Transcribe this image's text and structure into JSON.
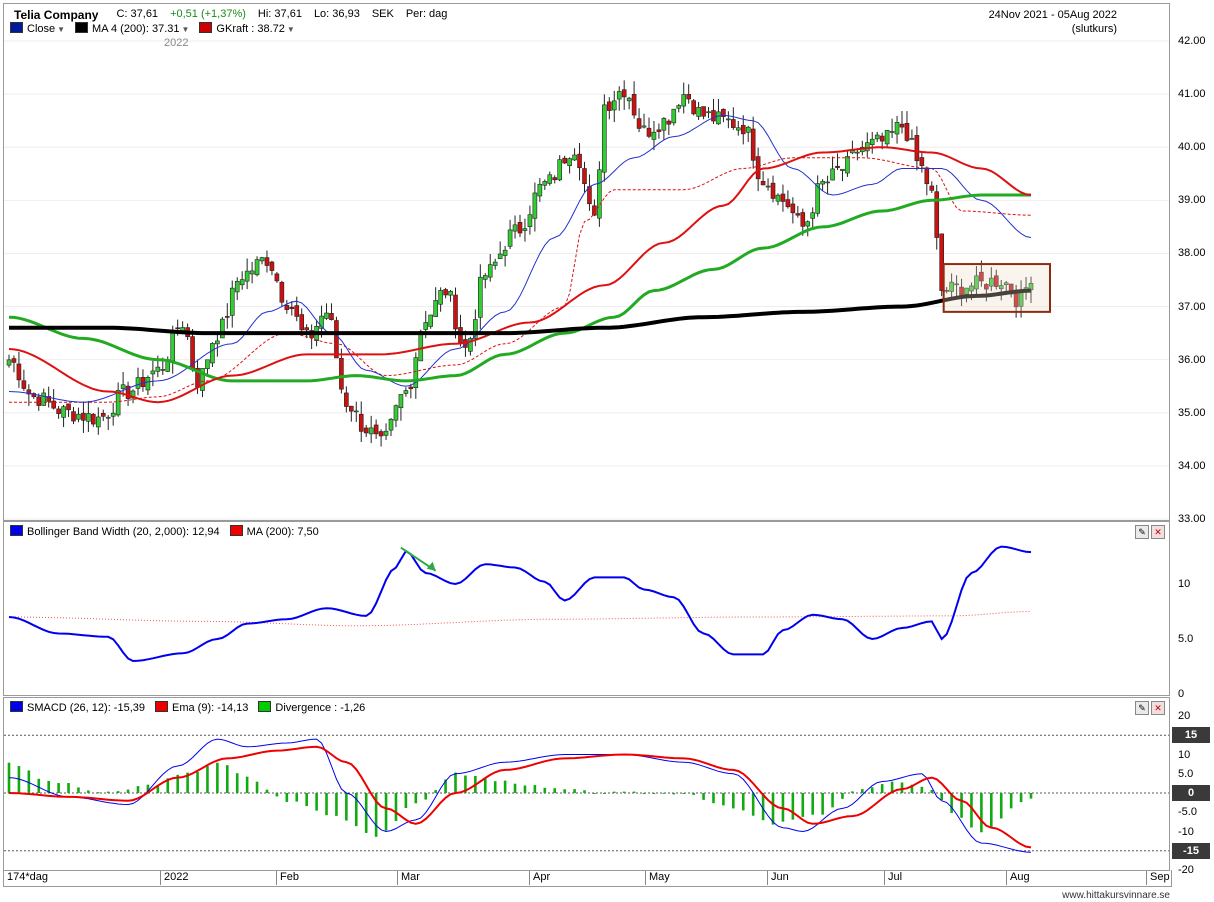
{
  "header": {
    "company": "Telia Company",
    "close": "C: 37,61",
    "change": "+0,51 (+1,37%)",
    "high": "Hi: 37,61",
    "low": "Lo: 36,93",
    "currency": "SEK",
    "period": "Per: dag",
    "date_range": "24Nov 2021 - 05Aug 2022",
    "price_type": "(slutkurs)",
    "year_tag": "2022"
  },
  "legend_main": [
    {
      "label": "Close",
      "color": "#001b9a"
    },
    {
      "label": "MA 4 (200): 37.31",
      "color": "#000000"
    },
    {
      "label": "GKraft : 38.72",
      "color": "#cc0000"
    }
  ],
  "legend_bb": [
    {
      "label": "Bollinger Band Width (20, 2,000): 12,94",
      "color": "#0000ee"
    },
    {
      "label": "MA (200): 7,50",
      "color": "#ee0000"
    }
  ],
  "legend_macd": [
    {
      "label": "SMACD (26, 12): -15,39",
      "color": "#0000ee"
    },
    {
      "label": "Ema (9): -14,13",
      "color": "#ee0000"
    },
    {
      "label": "Divergence : -1,26",
      "color": "#00cc00"
    }
  ],
  "colors": {
    "up_candle": "#33cc33",
    "down_candle": "#cc1111",
    "ma200": "#000000",
    "ma_green": "#22aa22",
    "ma_red": "#dd1111",
    "ma_blue": "#2233cc",
    "bb_width": "#0000ee",
    "bb_ma": "#ee5555",
    "macd": "#0000ee",
    "ema": "#ee0000",
    "divergence": "#11aa11"
  },
  "axes": {
    "price_ticks": [
      "42.00",
      "41.00",
      "40.00",
      "39.00",
      "38.00",
      "37.00",
      "36.00",
      "35.00",
      "34.00",
      "33.00"
    ],
    "price_range": [
      33,
      42
    ],
    "bb_ticks": [
      "10",
      "5.0",
      "0"
    ],
    "bb_range": [
      0,
      14
    ],
    "macd_ticks": [
      "20",
      "10",
      "5.0",
      "0",
      "-5.0",
      "-10",
      "-20"
    ],
    "macd_range": [
      -20,
      20
    ],
    "macd_markers": [
      "15",
      "0",
      "-15"
    ],
    "x_labels": [
      "174*dag",
      "2022",
      "Feb",
      "Mar",
      "Apr",
      "May",
      "Jun",
      "Jul",
      "Aug",
      "Sep"
    ]
  },
  "chart_data": [
    {
      "type": "candlestick",
      "title": "Telia Company",
      "y_range": [
        33,
        42
      ],
      "anchors_close": [
        [
          0,
          36.0
        ],
        [
          5,
          35.3
        ],
        [
          12,
          35.0
        ],
        [
          18,
          34.9
        ],
        [
          24,
          35.4
        ],
        [
          30,
          35.8
        ],
        [
          35,
          36.7
        ],
        [
          38,
          35.6
        ],
        [
          42,
          36.5
        ],
        [
          47,
          37.6
        ],
        [
          52,
          37.9
        ],
        [
          56,
          37.1
        ],
        [
          60,
          36.4
        ],
        [
          64,
          36.9
        ],
        [
          68,
          35.2
        ],
        [
          72,
          34.7
        ],
        [
          75,
          34.4
        ],
        [
          80,
          35.4
        ],
        [
          84,
          36.8
        ],
        [
          88,
          37.3
        ],
        [
          92,
          36.2
        ],
        [
          96,
          37.6
        ],
        [
          102,
          38.4
        ],
        [
          108,
          39.3
        ],
        [
          114,
          40.0
        ],
        [
          118,
          38.6
        ],
        [
          120,
          40.8
        ],
        [
          124,
          41.1
        ],
        [
          128,
          40.3
        ],
        [
          132,
          40.5
        ],
        [
          136,
          41.0
        ],
        [
          140,
          40.6
        ],
        [
          144,
          40.5
        ],
        [
          148,
          40.4
        ],
        [
          152,
          39.4
        ],
        [
          156,
          39.0
        ],
        [
          160,
          38.5
        ],
        [
          164,
          39.3
        ],
        [
          168,
          39.6
        ],
        [
          172,
          40.0
        ],
        [
          176,
          40.1
        ],
        [
          180,
          40.4
        ],
        [
          184,
          39.6
        ],
        [
          186,
          39.1
        ],
        [
          188,
          37.3
        ],
        [
          194,
          37.4
        ],
        [
          200,
          37.5
        ],
        [
          204,
          37.1
        ],
        [
          206,
          37.6
        ]
      ],
      "ma_red_anchors": [
        [
          0,
          36.2
        ],
        [
          20,
          35.4
        ],
        [
          30,
          35.2
        ],
        [
          45,
          35.7
        ],
        [
          60,
          36.1
        ],
        [
          75,
          36.1
        ],
        [
          90,
          36.3
        ],
        [
          105,
          36.7
        ],
        [
          120,
          37.4
        ],
        [
          132,
          38.2
        ],
        [
          144,
          38.9
        ],
        [
          152,
          39.6
        ],
        [
          164,
          39.9
        ],
        [
          176,
          40.0
        ],
        [
          186,
          39.9
        ],
        [
          196,
          39.6
        ],
        [
          206,
          39.1
        ]
      ],
      "ma_green_anchors": [
        [
          0,
          36.8
        ],
        [
          15,
          36.4
        ],
        [
          30,
          36.0
        ],
        [
          45,
          35.6
        ],
        [
          60,
          35.6
        ],
        [
          70,
          35.7
        ],
        [
          80,
          35.6
        ],
        [
          90,
          35.7
        ],
        [
          100,
          36.1
        ],
        [
          112,
          36.5
        ],
        [
          122,
          36.8
        ],
        [
          130,
          37.3
        ],
        [
          142,
          37.7
        ],
        [
          152,
          38.1
        ],
        [
          164,
          38.5
        ],
        [
          176,
          38.8
        ],
        [
          186,
          39.0
        ],
        [
          196,
          39.1
        ],
        [
          206,
          39.1
        ]
      ],
      "ma200_anchors": [
        [
          0,
          36.6
        ],
        [
          20,
          36.6
        ],
        [
          40,
          36.5
        ],
        [
          60,
          36.5
        ],
        [
          80,
          36.5
        ],
        [
          100,
          36.5
        ],
        [
          120,
          36.6
        ],
        [
          140,
          36.8
        ],
        [
          160,
          36.9
        ],
        [
          180,
          37.0
        ],
        [
          195,
          37.2
        ],
        [
          206,
          37.3
        ]
      ],
      "ma_blue_anchors": [
        [
          0,
          35.4
        ],
        [
          15,
          35.2
        ],
        [
          30,
          35.6
        ],
        [
          45,
          36.3
        ],
        [
          52,
          36.9
        ],
        [
          58,
          37.1
        ],
        [
          65,
          36.5
        ],
        [
          72,
          35.8
        ],
        [
          80,
          35.5
        ],
        [
          90,
          36.2
        ],
        [
          100,
          36.9
        ],
        [
          110,
          38.3
        ],
        [
          118,
          39.3
        ],
        [
          126,
          39.8
        ],
        [
          134,
          40.2
        ],
        [
          144,
          40.6
        ],
        [
          150,
          40.5
        ],
        [
          158,
          39.6
        ],
        [
          166,
          39.1
        ],
        [
          174,
          39.3
        ],
        [
          180,
          39.6
        ],
        [
          188,
          39.6
        ],
        [
          196,
          39.0
        ],
        [
          206,
          38.3
        ]
      ],
      "gkraft_anchors": [
        [
          0,
          35.2
        ],
        [
          20,
          35.2
        ],
        [
          30,
          35.3
        ],
        [
          40,
          35.6
        ],
        [
          56,
          36.5
        ],
        [
          66,
          36.3
        ],
        [
          76,
          35.7
        ],
        [
          90,
          35.9
        ],
        [
          100,
          36.3
        ],
        [
          112,
          37.0
        ],
        [
          116,
          38.6
        ],
        [
          122,
          39.2
        ],
        [
          136,
          39.2
        ],
        [
          148,
          39.6
        ],
        [
          158,
          39.8
        ],
        [
          172,
          39.8
        ],
        [
          186,
          39.6
        ],
        [
          192,
          38.8
        ],
        [
          206,
          38.72
        ]
      ]
    },
    {
      "type": "line",
      "title": "Bollinger Band Width (20, 2,000)",
      "y_range": [
        0,
        14
      ],
      "series": [
        {
          "name": "Bollinger Band Width (20, 2,000)",
          "anchors": [
            [
              0,
              7.0
            ],
            [
              10,
              5.5
            ],
            [
              20,
              5.2
            ],
            [
              25,
              3.0
            ],
            [
              35,
              3.7
            ],
            [
              42,
              5.0
            ],
            [
              48,
              6.4
            ],
            [
              56,
              6.8
            ],
            [
              64,
              7.8
            ],
            [
              72,
              7.1
            ],
            [
              78,
              11.5
            ],
            [
              80,
              13.0
            ],
            [
              84,
              11.0
            ],
            [
              90,
              10.0
            ],
            [
              96,
              11.8
            ],
            [
              102,
              11.5
            ],
            [
              108,
              10.2
            ],
            [
              112,
              8.5
            ],
            [
              118,
              10.6
            ],
            [
              124,
              10.6
            ],
            [
              128,
              9.5
            ],
            [
              134,
              8.8
            ],
            [
              140,
              5.5
            ],
            [
              146,
              3.6
            ],
            [
              152,
              3.6
            ],
            [
              156,
              5.8
            ],
            [
              162,
              7.2
            ],
            [
              168,
              6.8
            ],
            [
              174,
              5.0
            ],
            [
              180,
              6.0
            ],
            [
              186,
              6.6
            ],
            [
              188,
              5.0
            ],
            [
              194,
              11.0
            ],
            [
              200,
              13.4
            ],
            [
              206,
              12.9
            ]
          ]
        },
        {
          "name": "MA (200)",
          "anchors": [
            [
              0,
              7.0
            ],
            [
              40,
              6.6
            ],
            [
              70,
              6.2
            ],
            [
              110,
              6.8
            ],
            [
              150,
              7.0
            ],
            [
              190,
              7.1
            ],
            [
              206,
              7.5
            ]
          ]
        }
      ]
    },
    {
      "type": "line",
      "title": "SMACD (26, 12)",
      "y_range": [
        -20,
        20
      ],
      "series": [
        {
          "name": "SMACD (26, 12)",
          "anchors": [
            [
              0,
              4
            ],
            [
              12,
              -1
            ],
            [
              24,
              -3
            ],
            [
              34,
              7
            ],
            [
              42,
              14
            ],
            [
              48,
              12
            ],
            [
              56,
              13
            ],
            [
              62,
              14
            ],
            [
              68,
              0
            ],
            [
              76,
              -10
            ],
            [
              82,
              -7
            ],
            [
              90,
              5
            ],
            [
              100,
              8
            ],
            [
              112,
              10
            ],
            [
              124,
              10
            ],
            [
              136,
              8
            ],
            [
              146,
              5
            ],
            [
              156,
              -9
            ],
            [
              160,
              -10
            ],
            [
              168,
              -4
            ],
            [
              176,
              3
            ],
            [
              184,
              5
            ],
            [
              188,
              -2
            ],
            [
              196,
              -13
            ],
            [
              206,
              -15.39
            ]
          ]
        },
        {
          "name": "Ema (9)",
          "anchors": [
            [
              0,
              0
            ],
            [
              12,
              -1
            ],
            [
              24,
              -2
            ],
            [
              34,
              4
            ],
            [
              44,
              9
            ],
            [
              54,
              11
            ],
            [
              62,
              12
            ],
            [
              68,
              8
            ],
            [
              76,
              -4
            ],
            [
              82,
              -8
            ],
            [
              90,
              0
            ],
            [
              100,
              6
            ],
            [
              112,
              9
            ],
            [
              124,
              10
            ],
            [
              136,
              9
            ],
            [
              146,
              6
            ],
            [
              156,
              -4
            ],
            [
              162,
              -8
            ],
            [
              170,
              -6
            ],
            [
              180,
              1
            ],
            [
              186,
              4
            ],
            [
              192,
              -2
            ],
            [
              198,
              -9
            ],
            [
              206,
              -14.13
            ]
          ]
        },
        {
          "name": "Divergence",
          "anchors": [
            [
              0,
              8
            ],
            [
              8,
              3
            ],
            [
              20,
              0
            ],
            [
              28,
              2
            ],
            [
              36,
              5
            ],
            [
              42,
              8
            ],
            [
              48,
              4
            ],
            [
              56,
              -2
            ],
            [
              66,
              -6
            ],
            [
              74,
              -11
            ],
            [
              82,
              -3
            ],
            [
              90,
              5
            ],
            [
              100,
              3
            ],
            [
              110,
              1
            ],
            [
              120,
              0
            ],
            [
              136,
              0
            ],
            [
              146,
              -4
            ],
            [
              154,
              -8
            ],
            [
              162,
              -6
            ],
            [
              172,
              1
            ],
            [
              180,
              3
            ],
            [
              186,
              1
            ],
            [
              190,
              -5
            ],
            [
              196,
              -10
            ],
            [
              206,
              -1.26
            ]
          ]
        }
      ]
    }
  ]
}
